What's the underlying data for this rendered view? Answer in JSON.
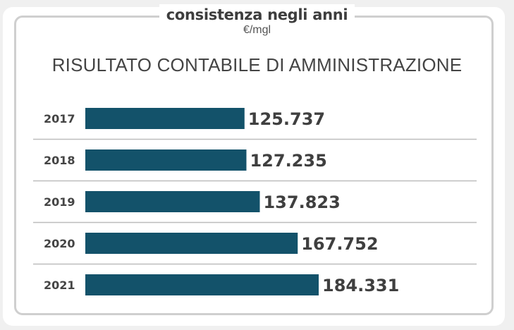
{
  "header": {
    "title": "consistenza negli anni",
    "unit": "€/mgl"
  },
  "colors": {
    "bar": "#13526a",
    "divider": "#bdbdbd",
    "frame": "#cfcfcf"
  },
  "chart_data": {
    "type": "bar",
    "orientation": "horizontal",
    "title": "RISULTATO CONTABILE DI AMMINISTRAZIONE",
    "categories": [
      "2017",
      "2018",
      "2019",
      "2020",
      "2021"
    ],
    "values": [
      125737,
      127235,
      137823,
      167752,
      184331
    ],
    "value_labels": [
      "125.737",
      "127.235",
      "137.823",
      "167.752",
      "184.331"
    ],
    "xlim": [
      0,
      184331
    ],
    "grid": false,
    "legend": "none"
  }
}
